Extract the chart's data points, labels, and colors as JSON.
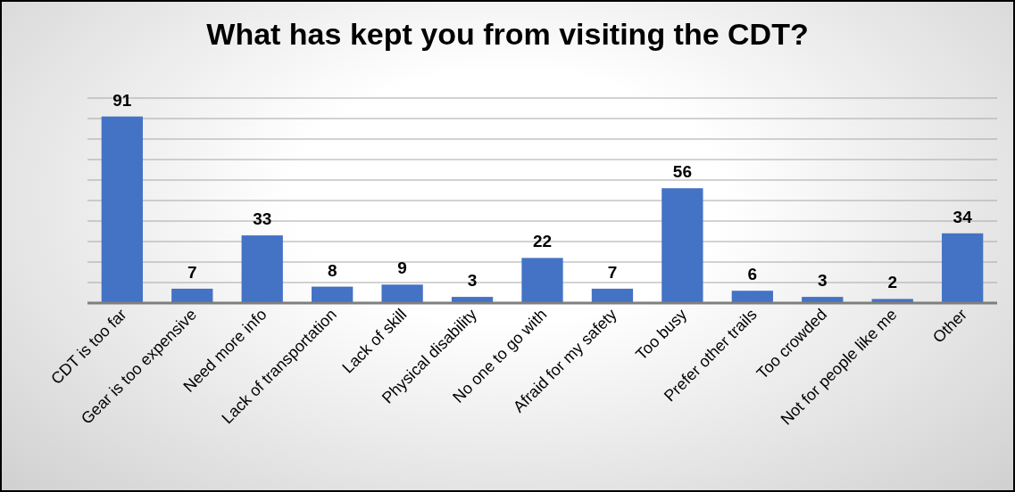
{
  "chart_data": {
    "type": "bar",
    "title": "What has kept you from visiting the CDT?",
    "categories": [
      "CDT is too far",
      "Gear is too expensive",
      "Need more info",
      "Lack of transportation",
      "Lack of skill",
      "Physical disability",
      "No one to go with",
      "Afraid for my safety",
      "Too busy",
      "Prefer other trails",
      "Too crowded",
      "Not for people like me",
      "Other"
    ],
    "values": [
      91,
      7,
      33,
      8,
      9,
      3,
      22,
      7,
      56,
      6,
      3,
      2,
      34
    ],
    "color": "#4472c4",
    "ylim": [
      0,
      100
    ],
    "yticks": [
      {
        "value": 0,
        "label": null
      },
      {
        "value": 10,
        "label": null
      },
      {
        "value": 20,
        "label": null
      },
      {
        "value": 30,
        "label": null
      },
      {
        "value": 40,
        "label": null
      },
      {
        "value": 50,
        "label": null
      },
      {
        "value": 60,
        "label": null
      },
      {
        "value": 70,
        "label": null
      },
      {
        "value": 80,
        "label": null
      },
      {
        "value": 90,
        "label": null
      },
      {
        "value": 100,
        "label": null
      }
    ],
    "grid": "y",
    "tick_labels": "x",
    "data_labels": true
  }
}
